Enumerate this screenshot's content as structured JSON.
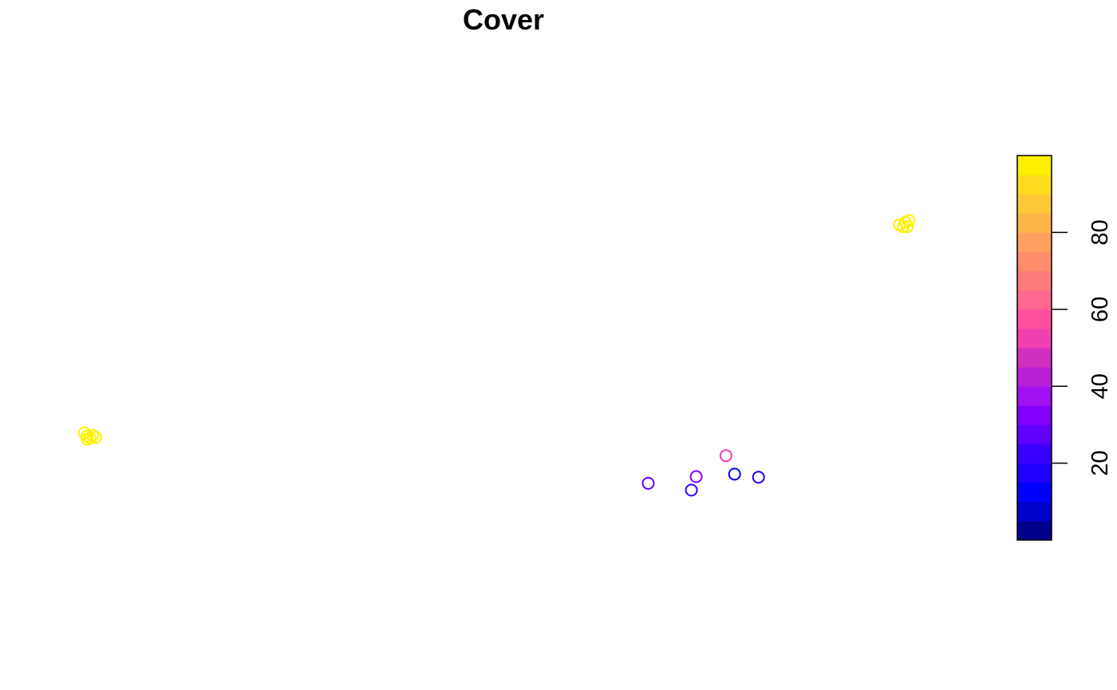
{
  "chart_data": {
    "type": "scatter",
    "title": "Cover",
    "xlabel": "",
    "ylabel": "",
    "axes_shown": false,
    "grid": false,
    "marker": "open-circle",
    "x_range": [
      0,
      1
    ],
    "y_range": [
      0,
      1
    ],
    "color_variable_range": [
      0,
      100
    ],
    "points": [
      {
        "x": 0.063,
        "y": 0.373,
        "value": 100
      },
      {
        "x": 0.066,
        "y": 0.368,
        "value": 100
      },
      {
        "x": 0.069,
        "y": 0.365,
        "value": 100
      },
      {
        "x": 0.072,
        "y": 0.369,
        "value": 100
      },
      {
        "x": 0.075,
        "y": 0.366,
        "value": 100
      },
      {
        "x": 0.066,
        "y": 0.363,
        "value": 100
      },
      {
        "x": 0.651,
        "y": 0.291,
        "value": 27
      },
      {
        "x": 0.696,
        "y": 0.28,
        "value": 23
      },
      {
        "x": 0.701,
        "y": 0.302,
        "value": 33
      },
      {
        "x": 0.732,
        "y": 0.336,
        "value": 52
      },
      {
        "x": 0.741,
        "y": 0.306,
        "value": 12
      },
      {
        "x": 0.766,
        "y": 0.301,
        "value": 18
      },
      {
        "x": 0.913,
        "y": 0.712,
        "value": 100
      },
      {
        "x": 0.917,
        "y": 0.709,
        "value": 100
      },
      {
        "x": 0.919,
        "y": 0.716,
        "value": 100
      },
      {
        "x": 0.921,
        "y": 0.709,
        "value": 100
      },
      {
        "x": 0.923,
        "y": 0.719,
        "value": 100
      }
    ],
    "legend": {
      "type": "color-bar",
      "placement": "right",
      "range": [
        0,
        100
      ],
      "ticks": [
        20,
        40,
        60,
        80
      ],
      "colors": [
        "#00008B",
        "#0000CD",
        "#0000FF",
        "#2000FF",
        "#3A00FF",
        "#6000FF",
        "#8200FF",
        "#A010F0",
        "#B820D8",
        "#D030C0",
        "#F040B0",
        "#FF50A0",
        "#FF6890",
        "#FF7A7A",
        "#FF8C6A",
        "#FFA060",
        "#FFB448",
        "#FFC838",
        "#FFDC20",
        "#FFF000"
      ]
    }
  }
}
